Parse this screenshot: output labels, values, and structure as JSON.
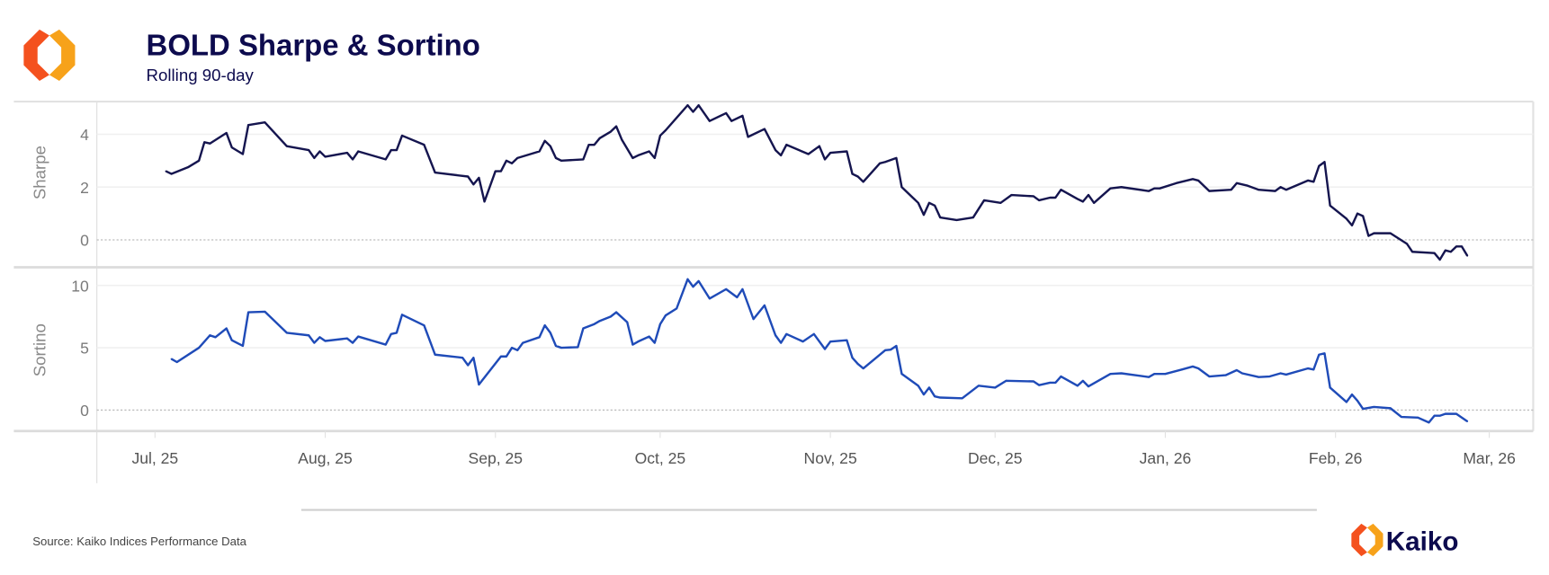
{
  "header": {
    "title": "BOLD Sharpe & Sortino",
    "subtitle": "Rolling 90-day"
  },
  "footer": {
    "source": "Source: Kaiko Indices Performance Data",
    "brand": "Kaiko"
  },
  "colors": {
    "sharpe": "#15154f",
    "sortino": "#1f4bb8",
    "title": "#0d0b4e",
    "logo_orange": "#f7931a",
    "logo_red": "#f4511e"
  },
  "chart_data": [
    {
      "type": "line",
      "title": "BOLD Sharpe & Sortino",
      "subtitle": "Rolling 90-day",
      "ylabel": "Sharpe",
      "x_unit": "days since Jul 1, 2025",
      "xlim": [
        -10.6,
        251
      ],
      "ylim": [
        -1.0,
        5.2
      ],
      "yticks": [
        0,
        2,
        4
      ],
      "ytick_labels": [
        "0",
        "2",
        "4"
      ],
      "reference_line": 0,
      "grid": true,
      "series": [
        {
          "name": "Sharpe",
          "points": [
            [
              2,
              2.6
            ],
            [
              3,
              2.5
            ],
            [
              6,
              2.75
            ],
            [
              8,
              3.0
            ],
            [
              9,
              3.7
            ],
            [
              10,
              3.65
            ],
            [
              13,
              4.05
            ],
            [
              14,
              3.5
            ],
            [
              16,
              3.25
            ],
            [
              17,
              4.35
            ],
            [
              20,
              4.45
            ],
            [
              24,
              3.55
            ],
            [
              28,
              3.4
            ],
            [
              29,
              3.1
            ],
            [
              30,
              3.35
            ],
            [
              31,
              3.15
            ],
            [
              35,
              3.3
            ],
            [
              36,
              3.05
            ],
            [
              37,
              3.35
            ],
            [
              42,
              3.05
            ],
            [
              43,
              3.4
            ],
            [
              44,
              3.4
            ],
            [
              45,
              3.95
            ],
            [
              49,
              3.6
            ],
            [
              51,
              2.55
            ],
            [
              57,
              2.4
            ],
            [
              58,
              2.1
            ],
            [
              59,
              2.35
            ],
            [
              60,
              1.45
            ],
            [
              62,
              2.6
            ],
            [
              63,
              2.6
            ],
            [
              64,
              3.0
            ],
            [
              65,
              2.9
            ],
            [
              66,
              3.1
            ],
            [
              70,
              3.35
            ],
            [
              71,
              3.75
            ],
            [
              72,
              3.55
            ],
            [
              73,
              3.1
            ],
            [
              74,
              3.0
            ],
            [
              78,
              3.05
            ],
            [
              79,
              3.6
            ],
            [
              80,
              3.6
            ],
            [
              81,
              3.85
            ],
            [
              83,
              4.1
            ],
            [
              84,
              4.3
            ],
            [
              85,
              3.8
            ],
            [
              87,
              3.1
            ],
            [
              88,
              3.2
            ],
            [
              90,
              3.35
            ],
            [
              91,
              3.1
            ],
            [
              92,
              3.95
            ],
            [
              93,
              4.15
            ],
            [
              97,
              5.1
            ],
            [
              98,
              4.85
            ],
            [
              99,
              5.1
            ],
            [
              101,
              4.5
            ],
            [
              104,
              4.8
            ],
            [
              105,
              4.5
            ],
            [
              107,
              4.7
            ],
            [
              108,
              3.9
            ],
            [
              111,
              4.2
            ],
            [
              113,
              3.4
            ],
            [
              114,
              3.2
            ],
            [
              115,
              3.6
            ],
            [
              119,
              3.25
            ],
            [
              121,
              3.55
            ],
            [
              122,
              3.05
            ],
            [
              123,
              3.3
            ],
            [
              126,
              3.35
            ],
            [
              127,
              2.5
            ],
            [
              128,
              2.4
            ],
            [
              129,
              2.2
            ],
            [
              132,
              2.9
            ],
            [
              133,
              2.95
            ],
            [
              135,
              3.1
            ],
            [
              136,
              2.0
            ],
            [
              139,
              1.4
            ],
            [
              140,
              0.95
            ],
            [
              141,
              1.4
            ],
            [
              142,
              1.3
            ],
            [
              143,
              0.85
            ],
            [
              146,
              0.75
            ],
            [
              149,
              0.85
            ],
            [
              151,
              1.5
            ],
            [
              154,
              1.4
            ],
            [
              156,
              1.7
            ],
            [
              160,
              1.65
            ],
            [
              161,
              1.5
            ],
            [
              163,
              1.6
            ],
            [
              164,
              1.6
            ],
            [
              165,
              1.9
            ],
            [
              168,
              1.55
            ],
            [
              169,
              1.45
            ],
            [
              170,
              1.7
            ],
            [
              171,
              1.4
            ],
            [
              174,
              1.95
            ],
            [
              176,
              2.0
            ],
            [
              181,
              1.85
            ],
            [
              182,
              1.95
            ],
            [
              183,
              1.95
            ],
            [
              186,
              2.15
            ],
            [
              189,
              2.3
            ],
            [
              190,
              2.25
            ],
            [
              192,
              1.85
            ],
            [
              196,
              1.9
            ],
            [
              197,
              2.15
            ],
            [
              199,
              2.05
            ],
            [
              201,
              1.9
            ],
            [
              204,
              1.85
            ],
            [
              205,
              2.0
            ],
            [
              206,
              1.9
            ],
            [
              210,
              2.25
            ],
            [
              211,
              2.2
            ],
            [
              212,
              2.8
            ],
            [
              213,
              2.95
            ],
            [
              214,
              1.3
            ],
            [
              217,
              0.8
            ],
            [
              218,
              0.55
            ],
            [
              219,
              1.0
            ],
            [
              220,
              0.9
            ],
            [
              221,
              0.15
            ],
            [
              222,
              0.25
            ],
            [
              225,
              0.25
            ],
            [
              228,
              -0.15
            ],
            [
              229,
              -0.45
            ],
            [
              233,
              -0.5
            ],
            [
              234,
              -0.75
            ],
            [
              235,
              -0.4
            ],
            [
              236,
              -0.45
            ],
            [
              237,
              -0.25
            ],
            [
              238,
              -0.25
            ],
            [
              239,
              -0.6
            ]
          ]
        }
      ]
    },
    {
      "type": "line",
      "ylabel": "Sortino",
      "x_unit": "days since Jul 1, 2025",
      "xlim": [
        -10.6,
        251
      ],
      "ylim": [
        -1.6,
        11.3
      ],
      "yticks": [
        0,
        5,
        10
      ],
      "ytick_labels": [
        "0",
        "5",
        "10"
      ],
      "reference_line": 0,
      "grid": true,
      "xticks": [
        0,
        31,
        62,
        92,
        123,
        153,
        184,
        215,
        243
      ],
      "xtick_labels": [
        "Jul, 25",
        "Aug, 25",
        "Sep, 25",
        "Oct, 25",
        "Nov, 25",
        "Dec, 25",
        "Jan, 26",
        "Feb, 26",
        "Mar, 26"
      ],
      "series": [
        {
          "name": "Sortino",
          "points": [
            [
              3,
              4.1
            ],
            [
              4,
              3.85
            ],
            [
              8,
              5.0
            ],
            [
              10,
              6.0
            ],
            [
              11,
              5.85
            ],
            [
              13,
              6.55
            ],
            [
              14,
              5.6
            ],
            [
              16,
              5.15
            ],
            [
              17,
              7.85
            ],
            [
              20,
              7.9
            ],
            [
              24,
              6.2
            ],
            [
              28,
              6.0
            ],
            [
              29,
              5.4
            ],
            [
              30,
              5.85
            ],
            [
              31,
              5.55
            ],
            [
              35,
              5.75
            ],
            [
              36,
              5.4
            ],
            [
              37,
              5.9
            ],
            [
              42,
              5.25
            ],
            [
              43,
              6.1
            ],
            [
              44,
              6.2
            ],
            [
              45,
              7.65
            ],
            [
              49,
              6.8
            ],
            [
              51,
              4.45
            ],
            [
              56,
              4.2
            ],
            [
              57,
              3.6
            ],
            [
              58,
              4.2
            ],
            [
              59,
              2.05
            ],
            [
              63,
              4.3
            ],
            [
              64,
              4.3
            ],
            [
              65,
              5.0
            ],
            [
              66,
              4.8
            ],
            [
              67,
              5.4
            ],
            [
              70,
              5.85
            ],
            [
              71,
              6.8
            ],
            [
              72,
              6.2
            ],
            [
              73,
              5.15
            ],
            [
              74,
              5.0
            ],
            [
              77,
              5.05
            ],
            [
              78,
              6.55
            ],
            [
              80,
              6.9
            ],
            [
              81,
              7.15
            ],
            [
              83,
              7.5
            ],
            [
              84,
              7.85
            ],
            [
              86,
              7.05
            ],
            [
              87,
              5.25
            ],
            [
              88,
              5.5
            ],
            [
              90,
              5.9
            ],
            [
              91,
              5.4
            ],
            [
              92,
              6.9
            ],
            [
              93,
              7.6
            ],
            [
              95,
              8.15
            ],
            [
              97,
              10.5
            ],
            [
              98,
              9.9
            ],
            [
              99,
              10.35
            ],
            [
              101,
              8.95
            ],
            [
              104,
              9.7
            ],
            [
              106,
              9.05
            ],
            [
              107,
              9.7
            ],
            [
              109,
              7.3
            ],
            [
              111,
              8.4
            ],
            [
              113,
              6.0
            ],
            [
              114,
              5.4
            ],
            [
              115,
              6.1
            ],
            [
              118,
              5.5
            ],
            [
              120,
              6.1
            ],
            [
              122,
              4.9
            ],
            [
              123,
              5.5
            ],
            [
              126,
              5.6
            ],
            [
              127,
              4.2
            ],
            [
              128,
              3.7
            ],
            [
              129,
              3.35
            ],
            [
              133,
              4.8
            ],
            [
              134,
              4.85
            ],
            [
              135,
              5.15
            ],
            [
              136,
              2.9
            ],
            [
              139,
              1.95
            ],
            [
              140,
              1.25
            ],
            [
              141,
              1.8
            ],
            [
              142,
              1.1
            ],
            [
              143,
              1.0
            ],
            [
              147,
              0.95
            ],
            [
              150,
              1.95
            ],
            [
              153,
              1.8
            ],
            [
              155,
              2.35
            ],
            [
              160,
              2.3
            ],
            [
              161,
              2.0
            ],
            [
              163,
              2.2
            ],
            [
              164,
              2.2
            ],
            [
              165,
              2.7
            ],
            [
              168,
              1.95
            ],
            [
              169,
              2.35
            ],
            [
              170,
              1.9
            ],
            [
              174,
              2.9
            ],
            [
              176,
              2.95
            ],
            [
              181,
              2.65
            ],
            [
              182,
              2.9
            ],
            [
              184,
              2.9
            ],
            [
              187,
              3.25
            ],
            [
              189,
              3.5
            ],
            [
              190,
              3.35
            ],
            [
              192,
              2.7
            ],
            [
              195,
              2.8
            ],
            [
              197,
              3.2
            ],
            [
              198,
              2.95
            ],
            [
              201,
              2.65
            ],
            [
              203,
              2.7
            ],
            [
              205,
              2.95
            ],
            [
              206,
              2.85
            ],
            [
              210,
              3.35
            ],
            [
              211,
              3.25
            ],
            [
              212,
              4.45
            ],
            [
              213,
              4.55
            ],
            [
              214,
              1.8
            ],
            [
              217,
              0.65
            ],
            [
              218,
              1.25
            ],
            [
              219,
              0.75
            ],
            [
              220,
              0.1
            ],
            [
              222,
              0.25
            ],
            [
              225,
              0.15
            ],
            [
              227,
              -0.55
            ],
            [
              230,
              -0.6
            ],
            [
              232,
              -1.0
            ],
            [
              233,
              -0.45
            ],
            [
              234,
              -0.45
            ],
            [
              235,
              -0.3
            ],
            [
              237,
              -0.3
            ],
            [
              239,
              -0.9
            ]
          ]
        }
      ]
    }
  ]
}
